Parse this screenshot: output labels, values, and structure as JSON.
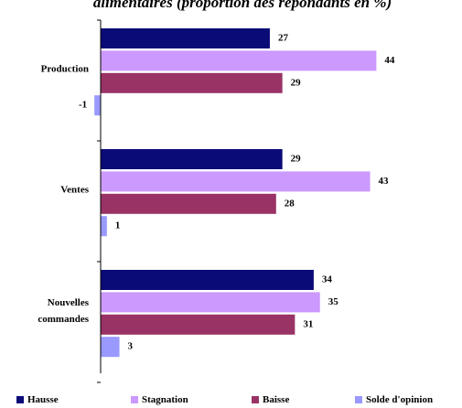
{
  "chart_data": {
    "type": "bar",
    "orientation": "horizontal",
    "title": "alimentaires (proportion des répondants en %)",
    "categories": [
      "Production",
      "Ventes",
      "Nouvelles commandes"
    ],
    "series": [
      {
        "name": "Hausse",
        "color": "#0b0b78",
        "values": [
          27,
          29,
          34
        ]
      },
      {
        "name": "Stagnation",
        "color": "#cc99ff",
        "values": [
          44,
          43,
          35
        ]
      },
      {
        "name": "Baisse",
        "color": "#993366",
        "values": [
          29,
          28,
          31
        ]
      },
      {
        "name": "Solde d'opinion",
        "color": "#9999ff",
        "values": [
          -1,
          1,
          3
        ]
      }
    ],
    "legend": "bottom"
  }
}
